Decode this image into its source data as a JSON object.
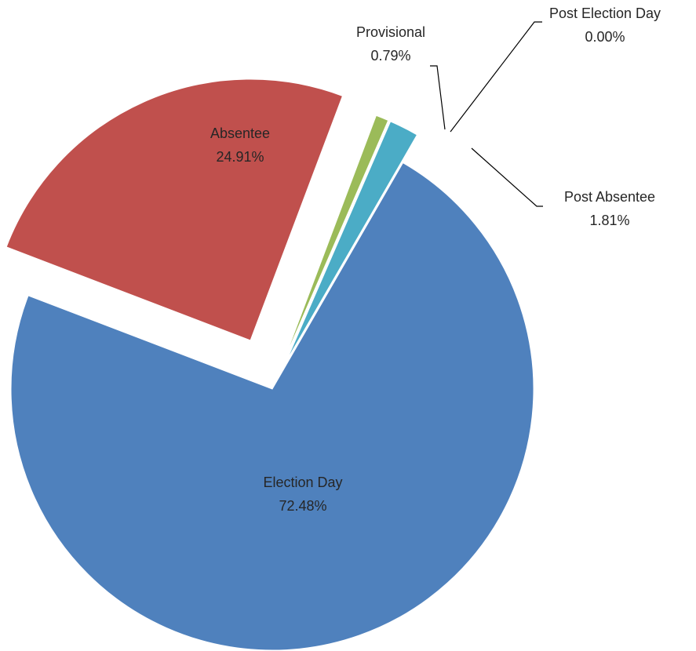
{
  "chart_data": {
    "type": "pie",
    "title": "",
    "legend": "none",
    "slices": [
      {
        "label": "Election Day",
        "value": 72.48,
        "display": "72.48%",
        "color": "#4f81bd"
      },
      {
        "label": "Absentee",
        "value": 24.91,
        "display": "24.91%",
        "color": "#c0504d"
      },
      {
        "label": "Provisional",
        "value": 0.79,
        "display": "0.79%",
        "color": "#9bbb59"
      },
      {
        "label": "Post Election Day",
        "value": 0.0,
        "display": "0.00%",
        "color": "#8064a2"
      },
      {
        "label": "Post Absentee",
        "value": 1.81,
        "display": "1.81%",
        "color": "#4bacc6"
      }
    ]
  }
}
